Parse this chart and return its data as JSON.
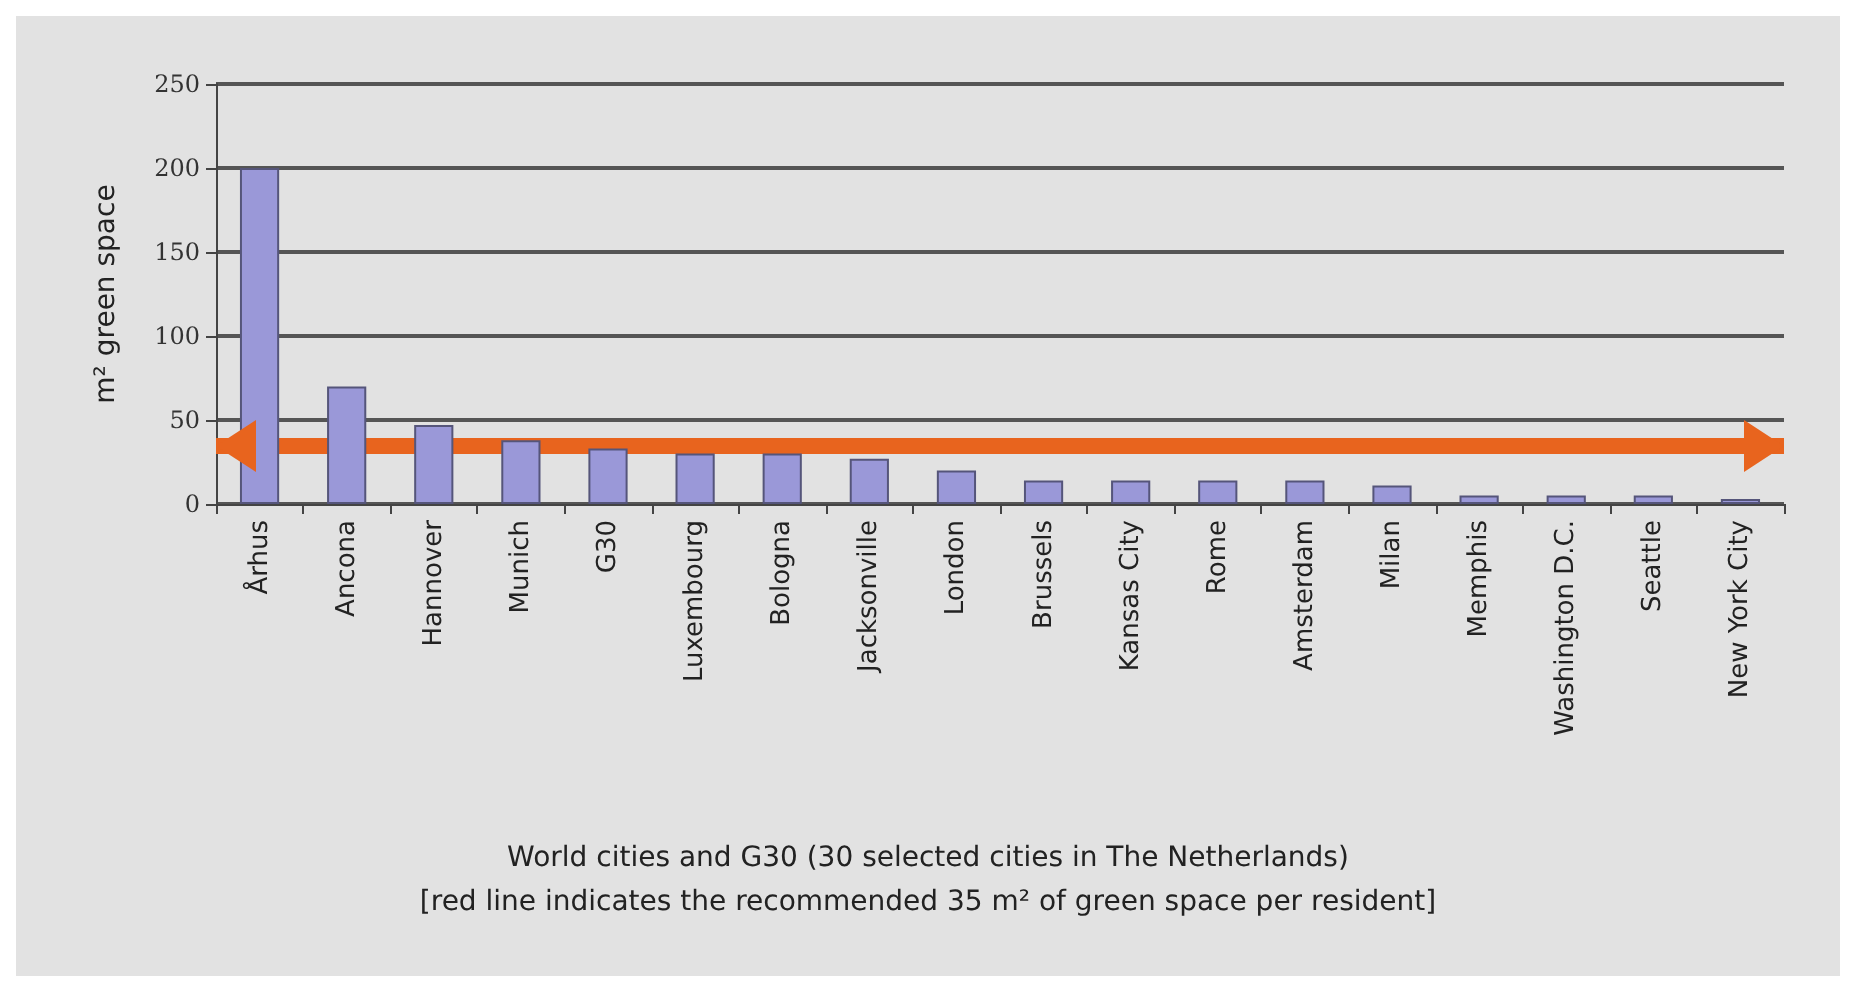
{
  "chart_data": {
    "type": "bar",
    "ylabel": "m² green space",
    "xlabel": "World cities and G30 (30 selected cities in The Netherlands)",
    "annotations": [
      "[red line indicates the recommended 35 m² of green space per resident]"
    ],
    "categories": [
      "Århus",
      "Ancona",
      "Hannover",
      "Munich",
      "G30",
      "Luxembourg",
      "Bologna",
      "Jacksonville",
      "London",
      "Brussels",
      "Kansas City",
      "Rome",
      "Amsterdam",
      "Milan",
      "Memphis",
      "Washington D.C.",
      "Seattle",
      "New York City"
    ],
    "values": [
      200,
      70,
      47,
      38,
      33,
      30,
      30,
      27,
      20,
      14,
      14,
      14,
      14,
      11,
      5,
      5,
      5,
      3
    ],
    "color": "#9a98d8",
    "ylim": [
      0,
      250
    ],
    "yticks": [
      0,
      50,
      100,
      150,
      200,
      250
    ],
    "grid": "y",
    "ref_lines": [
      {
        "axis": "y",
        "value": 35,
        "color": "#e8641e"
      }
    ]
  }
}
